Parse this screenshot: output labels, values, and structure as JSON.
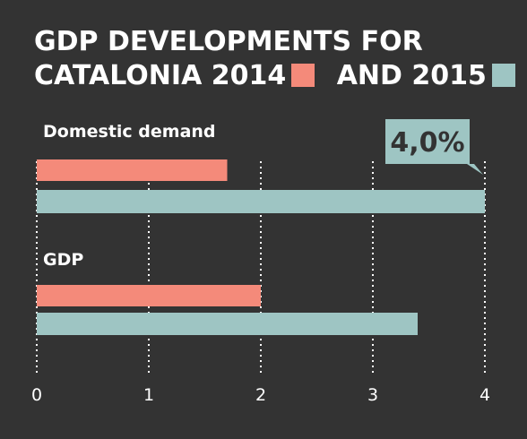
{
  "title": {
    "line1": "GDP DEVELOPMENTS FOR",
    "line2_a": "CATALONIA  2014",
    "line2_b": "AND 2015"
  },
  "colors": {
    "background": "#333333",
    "series_2014": "#f48a7a",
    "series_2015": "#9ec5c3",
    "grid": "#ffffff",
    "text": "#ffffff",
    "callout_bg": "#9ec5c3",
    "callout_text": "#333333"
  },
  "chart_data": {
    "type": "bar",
    "orientation": "horizontal",
    "title": "GDP DEVELOPMENTS FOR CATALONIA 2014 AND 2015",
    "categories": [
      "Domestic demand",
      "GDP"
    ],
    "series": [
      {
        "name": "2014",
        "values": [
          1.7,
          2.0
        ]
      },
      {
        "name": "2015",
        "values": [
          4.0,
          3.4
        ]
      }
    ],
    "xlim": [
      0,
      4
    ],
    "xticks": [
      "0",
      "1",
      "2",
      "3",
      "4"
    ],
    "grid": "vertical dotted",
    "legend": "inline in title",
    "annotation": {
      "text": "4,0%",
      "category": "Domestic demand",
      "series": "2015"
    }
  }
}
